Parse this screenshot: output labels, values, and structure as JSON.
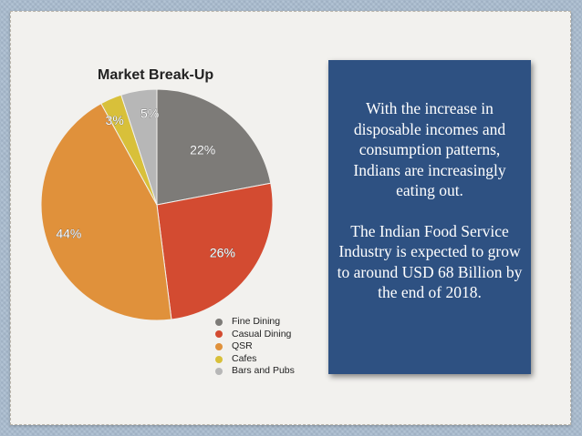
{
  "chart_data": {
    "type": "pie",
    "title": "Market Break-Up",
    "categories": [
      "Fine Dining",
      "Casual Dining",
      "QSR",
      "Cafes",
      "Bars and Pubs"
    ],
    "values": [
      22,
      26,
      44,
      3,
      5
    ],
    "labels": [
      "22%",
      "26%",
      "44%",
      "3%",
      "5%"
    ],
    "colors": [
      "#7d7b78",
      "#d34b31",
      "#e0913b",
      "#d8c03a",
      "#b7b7b7"
    ],
    "legend_position": "bottom-right"
  },
  "text_box": {
    "paragraph_1": "With the increase in disposable incomes and consumption patterns, Indians are increasingly eating out.",
    "paragraph_2": "The Indian Food Service Industry is expected to grow to around USD 68 Billion by the end of 2018."
  },
  "colors": {
    "background": "#a9bccf",
    "paper": "#f2f1ee",
    "text_box": "#2e5182"
  }
}
